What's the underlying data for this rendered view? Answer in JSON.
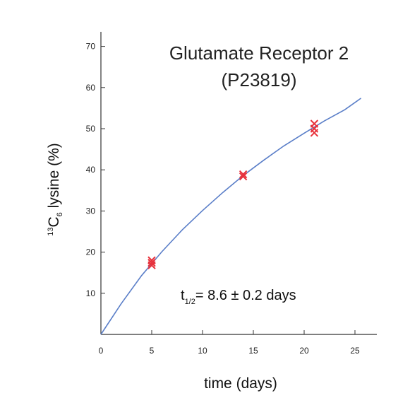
{
  "chart_data": {
    "type": "scatter",
    "title_lines": [
      "Glutamate Receptor 2",
      "(P23819)"
    ],
    "xlabel": "time (days)",
    "ylabel": {
      "isotope_sup": "13",
      "element": "C",
      "count_sub": "6",
      "rest": " lysine (%)"
    },
    "xlim": [
      0,
      26
    ],
    "ylim": [
      0,
      72
    ],
    "xticks": [
      0,
      5,
      10,
      15,
      20,
      25
    ],
    "yticks": [
      10,
      20,
      30,
      40,
      50,
      60,
      70
    ],
    "grid": false,
    "marker": "x",
    "marker_color": "#e8323c",
    "fit_color": "#5a7ec8",
    "points": [
      {
        "x": 5,
        "y": 16.8
      },
      {
        "x": 5,
        "y": 17.4
      },
      {
        "x": 5,
        "y": 18.0
      },
      {
        "x": 14,
        "y": 38.4
      },
      {
        "x": 14,
        "y": 38.9
      },
      {
        "x": 21,
        "y": 49.0
      },
      {
        "x": 21,
        "y": 50.0
      },
      {
        "x": 21,
        "y": 51.2
      }
    ],
    "fit": {
      "model": "saturating exponential",
      "x": [
        0,
        2,
        4,
        6,
        8,
        10,
        12,
        14,
        16,
        18,
        20,
        22,
        24,
        25.6
      ],
      "y": [
        0,
        7.5,
        14.3,
        20.1,
        25.4,
        30.1,
        34.5,
        38.6,
        42.3,
        45.8,
        48.9,
        51.9,
        54.6,
        57.4
      ]
    },
    "annotation": {
      "prefix": "t",
      "sub": "1/2",
      "value": "= 8.6 ± 0.2 days"
    }
  }
}
